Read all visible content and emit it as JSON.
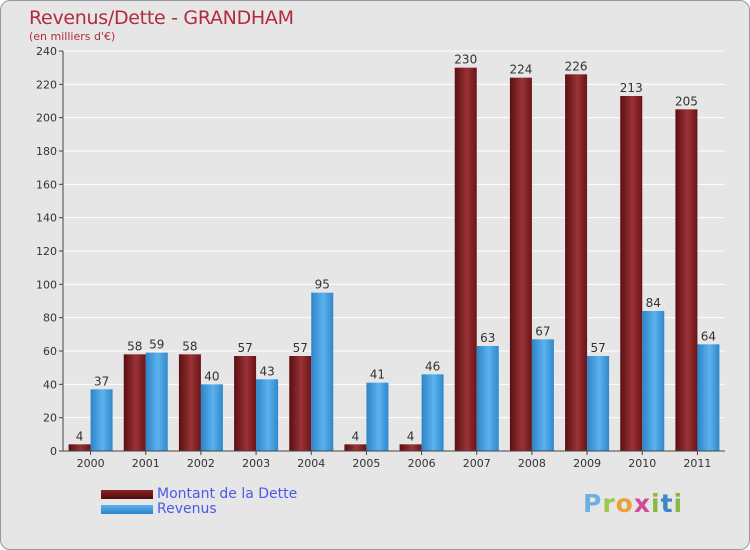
{
  "chart_data": {
    "type": "bar",
    "title": "Revenus/Dette - GRANDHAM",
    "subtitle": "(en milliers d'€)",
    "xlabel": "",
    "ylabel": "",
    "ylim": [
      0,
      240
    ],
    "yticks": [
      0,
      20,
      40,
      60,
      80,
      100,
      120,
      140,
      160,
      180,
      200,
      220,
      240
    ],
    "grid": true,
    "categories": [
      "2000",
      "2001",
      "2002",
      "2003",
      "2004",
      "2005",
      "2006",
      "2007",
      "2008",
      "2009",
      "2010",
      "2011"
    ],
    "series": [
      {
        "name": "Montant de la Dette",
        "color": "#7a1a1e",
        "values": [
          4,
          58,
          58,
          57,
          57,
          4,
          4,
          230,
          224,
          226,
          213,
          205
        ]
      },
      {
        "name": "Revenus",
        "color": "#3a97dc",
        "values": [
          37,
          59,
          40,
          43,
          95,
          41,
          46,
          63,
          67,
          57,
          84,
          64
        ]
      }
    ],
    "legend": "bottom-left"
  },
  "logo": {
    "text": "Proxiti",
    "parts": [
      "P",
      "r",
      "o",
      "x",
      "i",
      "t",
      "i"
    ]
  }
}
